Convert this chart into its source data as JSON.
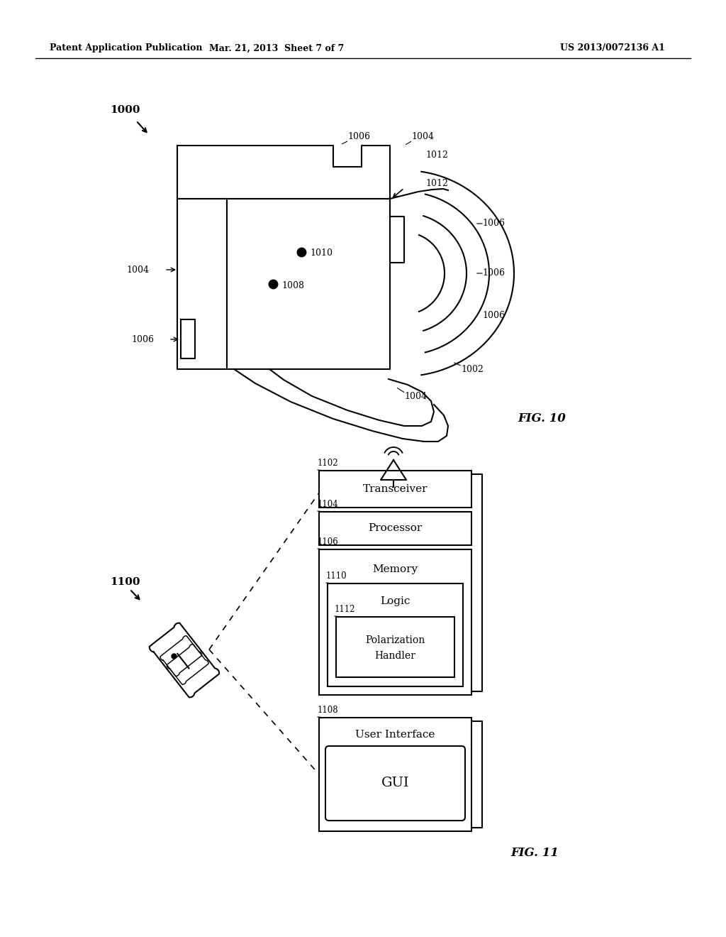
{
  "header_left": "Patent Application Publication",
  "header_mid": "Mar. 21, 2013  Sheet 7 of 7",
  "header_right": "US 2013/0072136 A1",
  "fig10_label": "FIG. 10",
  "fig11_label": "FIG. 11",
  "bg_color": "#ffffff",
  "line_color": "#000000"
}
